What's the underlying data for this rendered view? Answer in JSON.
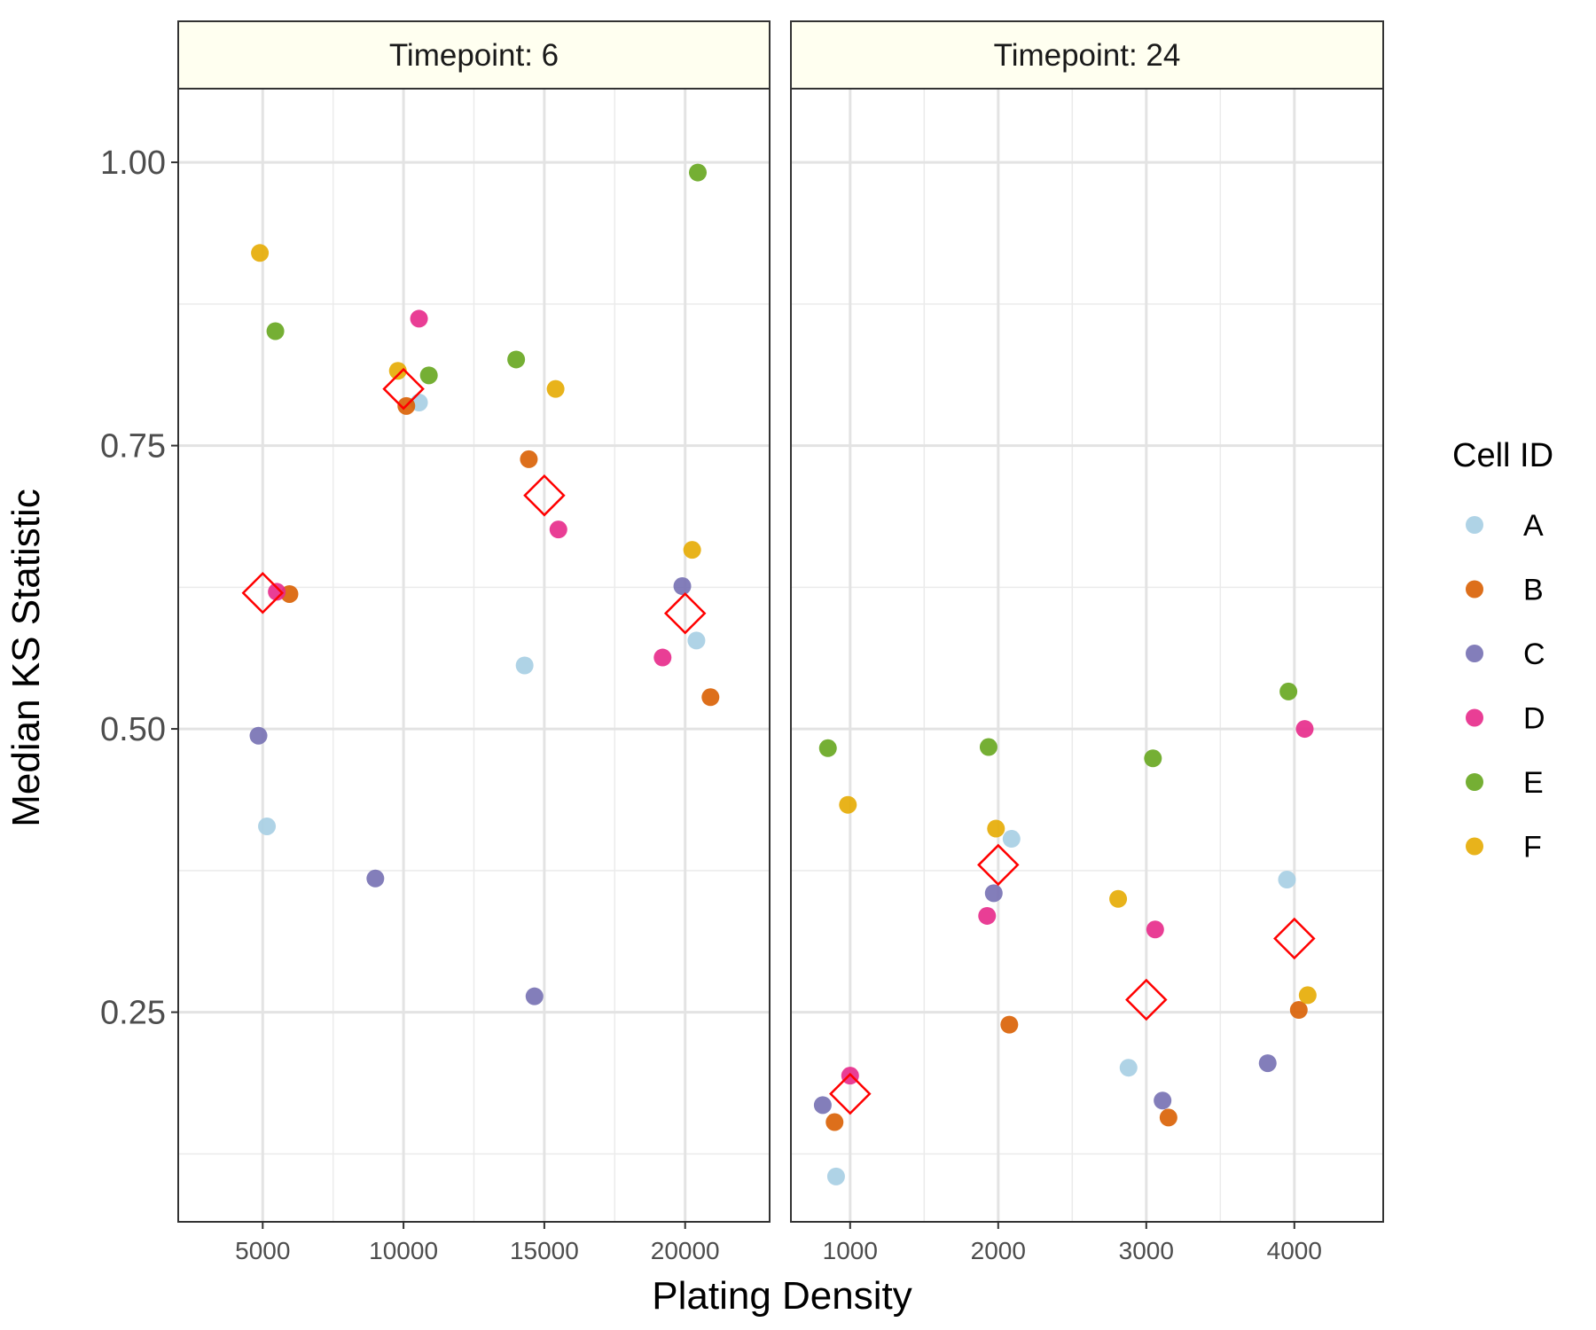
{
  "chart_data": {
    "type": "scatter",
    "ylabel": "Median KS Statistic",
    "xlabel": "Plating Density",
    "ylim": [
      0.065,
      1.065
    ],
    "yticks": [
      0.25,
      0.5,
      0.75,
      1.0
    ],
    "ytick_labels": [
      "0.25",
      "0.50",
      "0.75",
      "1.00"
    ],
    "grid": true,
    "legend": {
      "title": "Cell ID",
      "position": "right",
      "entries": [
        {
          "label": "A",
          "color": "#a6cee3"
        },
        {
          "label": "B",
          "color": "#d95f02"
        },
        {
          "label": "C",
          "color": "#7570b3"
        },
        {
          "label": "D",
          "color": "#e7298a"
        },
        {
          "label": "E",
          "color": "#66a61e"
        },
        {
          "label": "F",
          "color": "#e6ab02"
        }
      ]
    },
    "mean_marker": {
      "shape": "diamond",
      "color": "#ff0000"
    },
    "panels": [
      {
        "strip": "Timepoint: 6",
        "xlim": [
          2000,
          23000
        ],
        "xticks": [
          5000,
          10000,
          15000,
          20000
        ],
        "xtick_labels": [
          "5000",
          "10000",
          "15000",
          "20000"
        ],
        "series": [
          {
            "name": "A",
            "points": [
              [
                5150,
                0.414
              ],
              [
                10550,
                0.788
              ],
              [
                14300,
                0.556
              ],
              [
                20400,
                0.578
              ]
            ]
          },
          {
            "name": "B",
            "points": [
              [
                5950,
                0.619
              ],
              [
                10100,
                0.785
              ],
              [
                14450,
                0.738
              ],
              [
                20900,
                0.528
              ]
            ]
          },
          {
            "name": "C",
            "points": [
              [
                4850,
                0.494
              ],
              [
                9000,
                0.368
              ],
              [
                14650,
                0.264
              ],
              [
                19900,
                0.626
              ]
            ]
          },
          {
            "name": "D",
            "points": [
              [
                5500,
                0.621
              ],
              [
                10550,
                0.862
              ],
              [
                15500,
                0.676
              ],
              [
                19200,
                0.563
              ]
            ]
          },
          {
            "name": "E",
            "points": [
              [
                5450,
                0.851
              ],
              [
                10900,
                0.812
              ],
              [
                14000,
                0.826
              ],
              [
                20450,
                0.991
              ]
            ]
          },
          {
            "name": "F",
            "points": [
              [
                4900,
                0.92
              ],
              [
                9800,
                0.816
              ],
              [
                15400,
                0.8
              ],
              [
                20250,
                0.658
              ]
            ]
          }
        ],
        "means": [
          [
            5000,
            0.62
          ],
          [
            10000,
            0.8
          ],
          [
            15000,
            0.706
          ],
          [
            20000,
            0.602
          ]
        ]
      },
      {
        "strip": "Timepoint: 24",
        "xlim": [
          600,
          4600
        ],
        "xticks": [
          1000,
          2000,
          3000,
          4000
        ],
        "xtick_labels": [
          "1000",
          "2000",
          "3000",
          "4000"
        ],
        "series": [
          {
            "name": "A",
            "points": [
              [
                905,
                0.105
              ],
              [
                2090,
                0.403
              ],
              [
                2880,
                0.201
              ],
              [
                3950,
                0.367
              ]
            ]
          },
          {
            "name": "B",
            "points": [
              [
                895,
                0.153
              ],
              [
                2075,
                0.239
              ],
              [
                3150,
                0.157
              ],
              [
                4030,
                0.252
              ]
            ]
          },
          {
            "name": "C",
            "points": [
              [
                815,
                0.168
              ],
              [
                1970,
                0.355
              ],
              [
                3110,
                0.172
              ],
              [
                3820,
                0.205
              ]
            ]
          },
          {
            "name": "D",
            "points": [
              [
                1000,
                0.194
              ],
              [
                1925,
                0.335
              ],
              [
                3060,
                0.323
              ],
              [
                4070,
                0.5
              ]
            ]
          },
          {
            "name": "E",
            "points": [
              [
                850,
                0.483
              ],
              [
                1935,
                0.484
              ],
              [
                3045,
                0.474
              ],
              [
                3960,
                0.533
              ]
            ]
          },
          {
            "name": "F",
            "points": [
              [
                985,
                0.433
              ],
              [
                1985,
                0.412
              ],
              [
                2810,
                0.35
              ],
              [
                4090,
                0.265
              ]
            ]
          }
        ],
        "means": [
          [
            1000,
            0.178
          ],
          [
            2000,
            0.38
          ],
          [
            3000,
            0.261
          ],
          [
            4000,
            0.315
          ]
        ]
      }
    ]
  }
}
